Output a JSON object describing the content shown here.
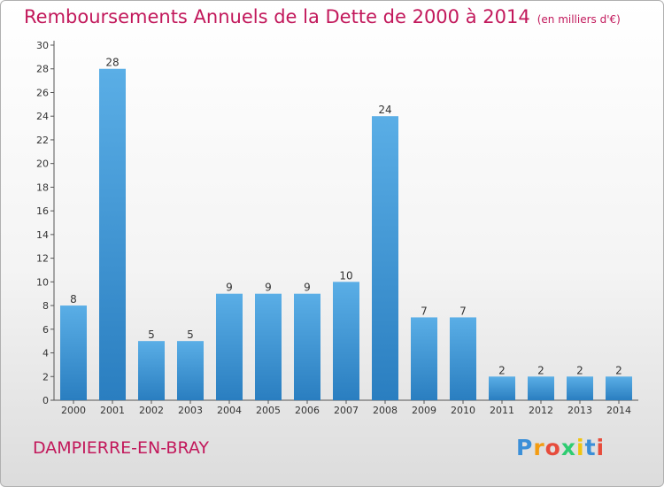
{
  "chart_data": {
    "type": "bar",
    "title": "Remboursements Annuels de la Dette de 2000 à 2014",
    "subtitle": "(en milliers d'€)",
    "categories": [
      "2000",
      "2001",
      "2002",
      "2003",
      "2004",
      "2005",
      "2006",
      "2007",
      "2008",
      "2009",
      "2010",
      "2011",
      "2012",
      "2013",
      "2014"
    ],
    "values": [
      8,
      28,
      5,
      5,
      9,
      9,
      9,
      10,
      24,
      7,
      7,
      2,
      2,
      2,
      2
    ],
    "data_labels": [
      "8",
      "28",
      "5",
      "5",
      "9",
      "9",
      "9",
      "10",
      "24",
      "7",
      "7",
      "2",
      "2",
      "2",
      "2"
    ],
    "yticks": [
      "0",
      "2",
      "4",
      "6",
      "8",
      "10",
      "12",
      "14",
      "16",
      "18",
      "20",
      "22",
      "24",
      "26",
      "28",
      "30"
    ],
    "ylim": [
      0,
      30
    ],
    "grid": false,
    "legend": "none",
    "colors": {
      "bar_light": "#5aaee6",
      "bar_dark": "#2a7ec0",
      "title": "#c2185b"
    }
  },
  "location": "DAMPIERRE-EN-BRAY",
  "brand": {
    "letters": [
      "P",
      "r",
      "o",
      "x",
      "i",
      "t",
      "i"
    ],
    "colors": [
      "#3b8fd8",
      "#f39c12",
      "#e74c3c",
      "#2ecc71",
      "#f1c40f",
      "#3b8fd8",
      "#e74c3c"
    ]
  }
}
